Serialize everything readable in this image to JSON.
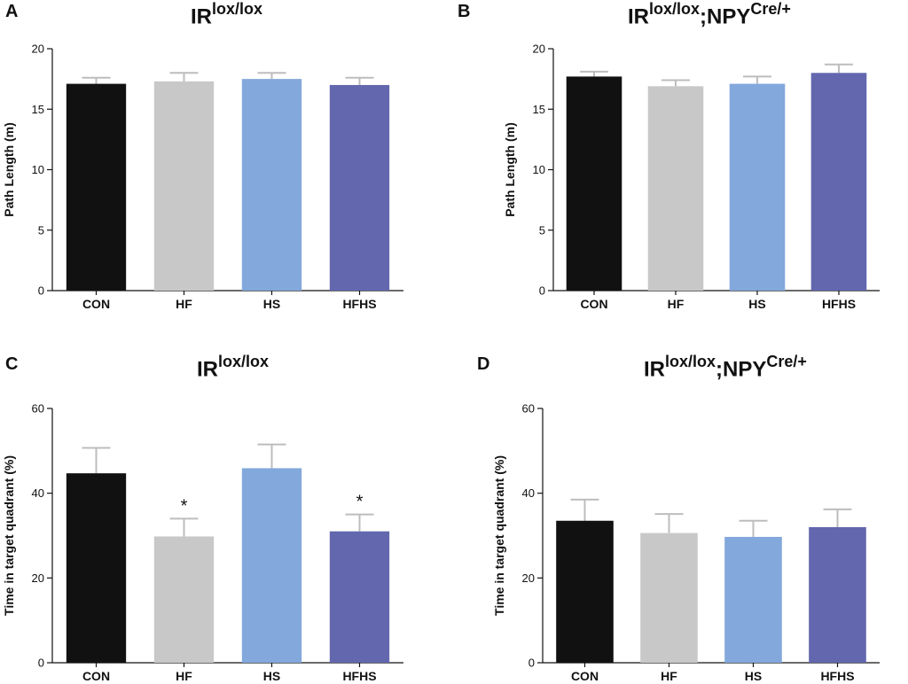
{
  "chart_data": [
    {
      "panel": "A",
      "type": "bar",
      "title": {
        "base": "IR",
        "sup": "lox/lox",
        "mid": "",
        "sup2": ""
      },
      "categories": [
        "CON",
        "HF",
        "HS",
        "HFHS"
      ],
      "values": [
        17.1,
        17.3,
        17.5,
        17.0
      ],
      "errors": [
        0.5,
        0.7,
        0.5,
        0.6
      ],
      "significance": [
        "",
        "",
        "",
        ""
      ],
      "ylabel": "Path Length (m)",
      "ylim": [
        0,
        20
      ],
      "yticks": [
        0,
        5,
        10,
        15,
        20
      ],
      "colors": [
        "#111111",
        "#c8c8c8",
        "#82a8dc",
        "#6267ae"
      ]
    },
    {
      "panel": "B",
      "type": "bar",
      "title": {
        "base": "IR",
        "sup": "lox/lox",
        "mid": ";NPY",
        "sup2": "Cre/+"
      },
      "categories": [
        "CON",
        "HF",
        "HS",
        "HFHS"
      ],
      "values": [
        17.7,
        16.9,
        17.1,
        18.0
      ],
      "errors": [
        0.4,
        0.5,
        0.6,
        0.7
      ],
      "significance": [
        "",
        "",
        "",
        ""
      ],
      "ylabel": "Path Length (m)",
      "ylim": [
        0,
        20
      ],
      "yticks": [
        0,
        5,
        10,
        15,
        20
      ],
      "colors": [
        "#111111",
        "#c8c8c8",
        "#82a8dc",
        "#6267ae"
      ]
    },
    {
      "panel": "C",
      "type": "bar",
      "title": {
        "base": "IR",
        "sup": "lox/lox",
        "mid": "",
        "sup2": ""
      },
      "categories": [
        "CON",
        "HF",
        "HS",
        "HFHS"
      ],
      "values": [
        44.7,
        29.8,
        45.9,
        31.0
      ],
      "errors": [
        6.0,
        4.2,
        5.6,
        4.0
      ],
      "significance": [
        "",
        "*",
        "",
        "*"
      ],
      "ylabel": "Time in target quadrant (%)",
      "ylim": [
        0,
        60
      ],
      "yticks": [
        0,
        20,
        40,
        60
      ],
      "colors": [
        "#111111",
        "#c8c8c8",
        "#82a8dc",
        "#6267ae"
      ]
    },
    {
      "panel": "D",
      "type": "bar",
      "title": {
        "base": "IR",
        "sup": "lox/lox",
        "mid": ";NPY",
        "sup2": "Cre/+"
      },
      "categories": [
        "CON",
        "HF",
        "HS",
        "HFHS"
      ],
      "values": [
        33.5,
        30.6,
        29.7,
        32.0
      ],
      "errors": [
        5.0,
        4.5,
        3.8,
        4.2
      ],
      "significance": [
        "",
        "",
        "",
        ""
      ],
      "ylabel": "Time in target quadrant (%)",
      "ylim": [
        0,
        60
      ],
      "yticks": [
        0,
        20,
        40,
        60
      ],
      "colors": [
        "#111111",
        "#c8c8c8",
        "#82a8dc",
        "#6267ae"
      ]
    }
  ]
}
